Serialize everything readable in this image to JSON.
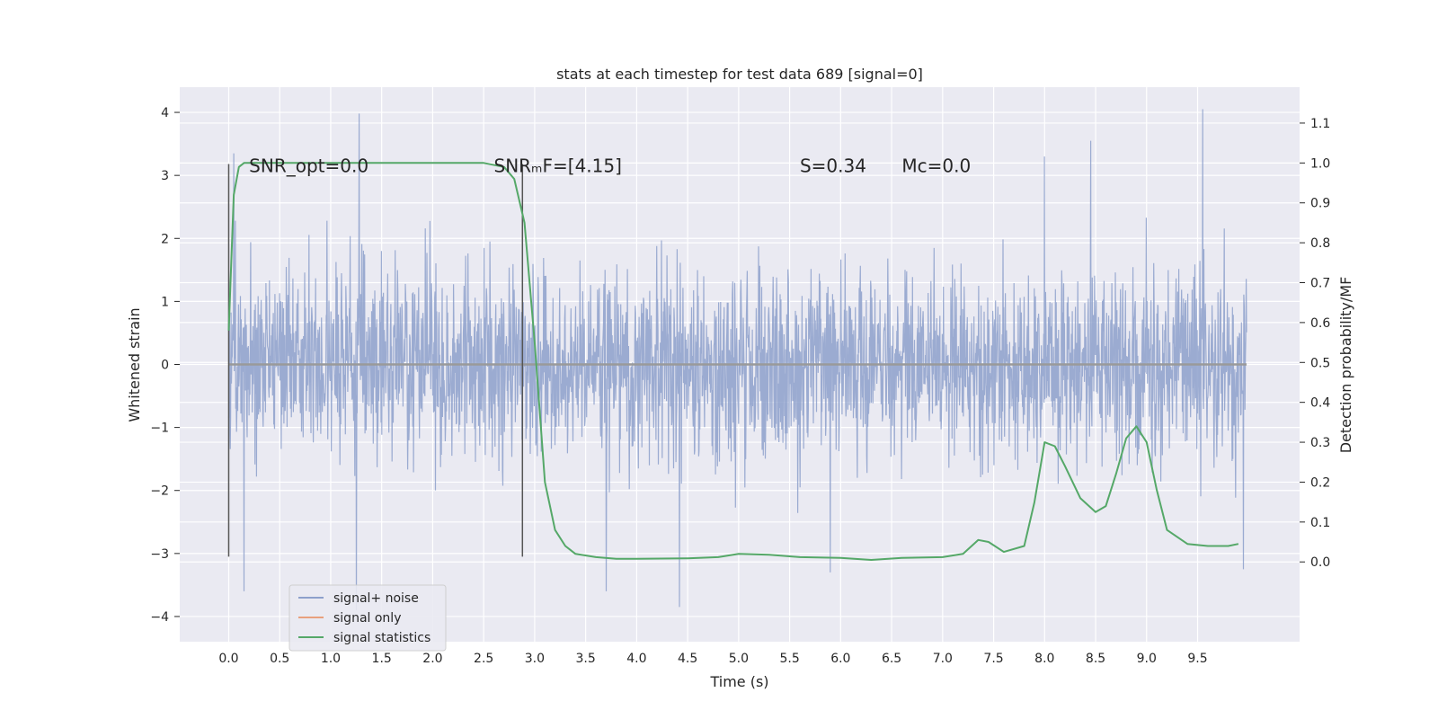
{
  "chart_data": {
    "type": "line",
    "title": "stats at each timestep for test data 689 [signal=0]",
    "xlabel": "Time (s)",
    "ylabel": "Whitened strain",
    "ylabel_right": "Detection probability/MF",
    "xlim": [
      -0.48,
      10.5
    ],
    "ylim": [
      -4.4,
      4.4
    ],
    "ylim_right": [
      -0.2,
      1.19
    ],
    "x_ticks": [
      0.0,
      0.5,
      1.0,
      1.5,
      2.0,
      2.5,
      3.0,
      3.5,
      4.0,
      4.5,
      5.0,
      5.5,
      6.0,
      6.5,
      7.0,
      7.5,
      8.0,
      8.5,
      9.0,
      9.5
    ],
    "x_tick_labels": [
      "0.0",
      "0.5",
      "1.0",
      "1.5",
      "2.0",
      "2.5",
      "3.0",
      "3.5",
      "4.0",
      "4.5",
      "5.0",
      "5.5",
      "6.0",
      "6.5",
      "7.0",
      "7.5",
      "8.0",
      "8.5",
      "9.0",
      "9.5"
    ],
    "y_ticks": [
      -4,
      -3,
      -2,
      -1,
      0,
      1,
      2,
      3,
      4
    ],
    "y_tick_labels": [
      "−4",
      "−3",
      "−2",
      "−1",
      "0",
      "1",
      "2",
      "3",
      "4"
    ],
    "y_right_ticks": [
      0.0,
      0.1,
      0.2,
      0.3,
      0.4,
      0.5,
      0.6,
      0.7,
      0.8,
      0.9,
      1.0,
      1.1
    ],
    "y_right_tick_labels": [
      "0.0",
      "0.1",
      "0.2",
      "0.3",
      "0.4",
      "0.5",
      "0.6",
      "0.7",
      "0.8",
      "0.9",
      "1.0",
      "1.1"
    ],
    "grid": true,
    "legend_position": "lower-left",
    "series": [
      {
        "name": "signal+ noise",
        "color": "#8da0cb",
        "axis": "left",
        "style": "dense-noise",
        "x_range": [
          0.0,
          9.98
        ],
        "typical_range": [
          -2.0,
          2.3
        ],
        "peaks": [
          {
            "x": 0.05,
            "y": 3.35
          },
          {
            "x": 1.28,
            "y": 3.98
          },
          {
            "x": 9.55,
            "y": 4.05
          },
          {
            "x": 0.15,
            "y": -3.6
          },
          {
            "x": 1.25,
            "y": -3.9
          },
          {
            "x": 4.42,
            "y": -3.85
          },
          {
            "x": 3.7,
            "y": -3.6
          },
          {
            "x": 8.45,
            "y": 3.55
          },
          {
            "x": 5.9,
            "y": -3.3
          },
          {
            "x": 9.95,
            "y": -3.25
          },
          {
            "x": 8.0,
            "y": 3.3
          }
        ]
      },
      {
        "name": "signal only",
        "color": "#e8a07d",
        "axis": "left",
        "x": [
          0.0,
          9.98
        ],
        "y": [
          0.0,
          0.0
        ]
      },
      {
        "name": "signal statistics",
        "color": "#55a868",
        "axis": "right",
        "x": [
          0.0,
          0.05,
          0.1,
          0.15,
          0.25,
          0.5,
          1.0,
          1.5,
          2.0,
          2.5,
          2.7,
          2.8,
          2.9,
          3.0,
          3.1,
          3.2,
          3.3,
          3.4,
          3.6,
          3.8,
          4.0,
          4.5,
          4.8,
          5.0,
          5.3,
          5.6,
          6.0,
          6.3,
          6.6,
          7.0,
          7.2,
          7.35,
          7.45,
          7.6,
          7.8,
          7.9,
          8.0,
          8.1,
          8.2,
          8.35,
          8.5,
          8.6,
          8.7,
          8.8,
          8.9,
          9.0,
          9.1,
          9.2,
          9.4,
          9.6,
          9.8,
          9.9
        ],
        "y": [
          0.58,
          0.92,
          0.99,
          1.0,
          1.0,
          1.0,
          1.0,
          1.0,
          1.0,
          1.0,
          0.99,
          0.96,
          0.85,
          0.55,
          0.2,
          0.08,
          0.04,
          0.02,
          0.012,
          0.008,
          0.008,
          0.009,
          0.012,
          0.02,
          0.018,
          0.012,
          0.01,
          0.005,
          0.01,
          0.012,
          0.02,
          0.055,
          0.05,
          0.025,
          0.04,
          0.15,
          0.3,
          0.29,
          0.24,
          0.16,
          0.125,
          0.14,
          0.22,
          0.31,
          0.34,
          0.3,
          0.18,
          0.08,
          0.045,
          0.04,
          0.04,
          0.045
        ]
      }
    ],
    "vlines": [
      {
        "x": 0.0,
        "y0": -3.05,
        "y1": 3.18
      },
      {
        "x": 2.88,
        "y0": -3.05,
        "y1": 3.18
      }
    ],
    "annotations": [
      {
        "id": "snr-opt",
        "text": "SNR_opt=0.0",
        "x": 0.2,
        "y": 3.15
      },
      {
        "id": "snr-mf",
        "text": "SNRₘF=[4.15]",
        "x": 2.6,
        "y": 3.15
      },
      {
        "id": "s",
        "text": "S=0.34",
        "x": 5.6,
        "y": 3.15
      },
      {
        "id": "mc",
        "text": "Mᴄ=0.0",
        "x": 6.6,
        "y": 3.15
      }
    ]
  }
}
